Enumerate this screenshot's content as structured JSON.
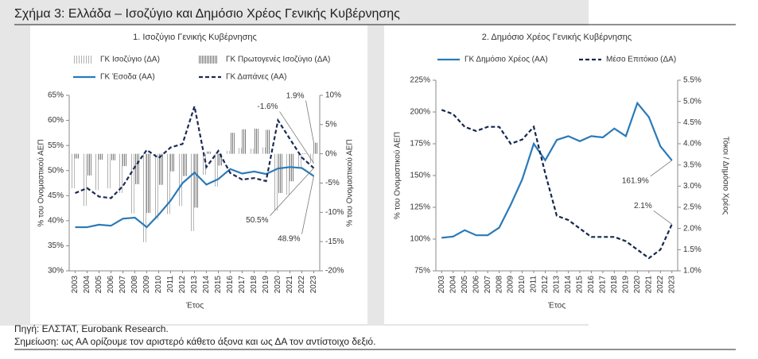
{
  "figure_title": "Σχήμα 3: Ελλάδα – Ισοζύγιο και Δημόσιο Χρέος Γενικής Κυβέρνησης",
  "source": "Πηγή: ΕΛΣΤΑΤ, Eurobank Research.",
  "note": "Σημείωση: ως ΑΑ ορίζουμε τον αριστερό κάθετο άξονα και ως ΔΑ τον αντίστοιχο δεξιό.",
  "chart_data": [
    {
      "type": "combo",
      "title": "1. Ισοζύγιο Γενικής Κυβέρνησης",
      "x_label": "Έτος",
      "y_label": "% του Ονομαστικού ΑΕΠ",
      "y2_label": "% του Ονομαστικού ΑΕΠ",
      "legend": "top",
      "categories": [
        "2003",
        "2004",
        "2005",
        "2006",
        "2007",
        "2008",
        "2009",
        "2010",
        "2011",
        "2012",
        "2013",
        "2014",
        "2015",
        "2016",
        "2017",
        "2018",
        "2019",
        "2020",
        "2021",
        "2022",
        "2023"
      ],
      "ylim": [
        30,
        65
      ],
      "yticks": [
        {
          "value": 30,
          "label": "30%"
        },
        {
          "value": 35,
          "label": "35%"
        },
        {
          "value": 40,
          "label": "40%"
        },
        {
          "value": 45,
          "label": "45%"
        },
        {
          "value": 50,
          "label": "50%"
        },
        {
          "value": 55,
          "label": "55%"
        },
        {
          "value": 60,
          "label": "60%"
        },
        {
          "value": 65,
          "label": "65%"
        }
      ],
      "y2lim": [
        -20,
        10
      ],
      "y2ticks": [
        {
          "value": -20,
          "label": "-20%"
        },
        {
          "value": -15,
          "label": "-15%"
        },
        {
          "value": -10,
          "label": "-10%"
        },
        {
          "value": -5,
          "label": "-5%"
        },
        {
          "value": 0,
          "label": "0%"
        },
        {
          "value": 5,
          "label": "5%"
        },
        {
          "value": 10,
          "label": "10%"
        }
      ],
      "series": [
        {
          "name": "ΓΚ Ισοζύγιο (ΔΑ)",
          "type": "bar",
          "pattern": "hatch",
          "color": "#b0b0b0",
          "axis": "y2",
          "values": [
            -5.9,
            -8.9,
            -6.2,
            -5.9,
            -6.7,
            -10.2,
            -15.1,
            -11.2,
            -10.3,
            -8.9,
            -13.2,
            -3.6,
            -5.6,
            0.5,
            1.0,
            0.9,
            1.1,
            -9.7,
            -7.0,
            -2.4,
            -1.6
          ],
          "value_labels": [
            null,
            null,
            null,
            null,
            null,
            null,
            null,
            null,
            null,
            null,
            null,
            null,
            null,
            null,
            null,
            null,
            null,
            null,
            null,
            null,
            "-1.6%"
          ]
        },
        {
          "name": "ΓΚ Πρωτογενές Ισοζύγιο (ΔΑ)",
          "type": "bar",
          "pattern": "hatch",
          "color": "#7a7a7a",
          "axis": "y2",
          "values": [
            -0.8,
            -3.7,
            -1.0,
            -1.1,
            -2.1,
            -5.2,
            -10.1,
            -5.3,
            -3.0,
            -3.8,
            -9.2,
            0.4,
            -2.0,
            3.6,
            4.2,
            4.3,
            4.1,
            -6.7,
            -4.7,
            0.1,
            1.9
          ],
          "value_labels": [
            null,
            null,
            null,
            null,
            null,
            null,
            null,
            null,
            null,
            null,
            null,
            null,
            null,
            null,
            null,
            null,
            null,
            null,
            null,
            null,
            "1.9%"
          ]
        },
        {
          "name": "ΓΚ Έσοδα (ΑΑ)",
          "type": "line",
          "color": "#2a7ab8",
          "dashed": false,
          "values": [
            38.7,
            38.7,
            39.2,
            39.0,
            40.4,
            40.6,
            38.7,
            41.2,
            44.0,
            47.5,
            49.6,
            47.2,
            48.3,
            50.3,
            49.4,
            49.8,
            49.3,
            50.4,
            50.7,
            50.5,
            48.9
          ],
          "value_labels": [
            null,
            null,
            null,
            null,
            null,
            null,
            null,
            null,
            null,
            null,
            null,
            null,
            null,
            null,
            null,
            null,
            null,
            null,
            null,
            null,
            "48.9%"
          ]
        },
        {
          "name": "ΓΚ Δαπάνες (ΑΑ)",
          "type": "line",
          "color": "#1b2a55",
          "dashed": true,
          "values": [
            45.5,
            46.5,
            44.8,
            44.5,
            46.9,
            50.7,
            54.1,
            52.5,
            54.6,
            55.3,
            62.8,
            50.7,
            53.9,
            49.5,
            48.2,
            48.5,
            47.9,
            60.0,
            56.3,
            52.6,
            50.5
          ],
          "value_labels": [
            null,
            null,
            null,
            null,
            null,
            null,
            null,
            null,
            null,
            null,
            null,
            null,
            null,
            null,
            null,
            null,
            null,
            null,
            null,
            null,
            "50.5%"
          ]
        }
      ]
    },
    {
      "type": "line",
      "title": "2. Δημόσιο Χρέος Γενικής Κυβέρνησης",
      "x_label": "Έτος",
      "y_label": "% του Ονομαστικού ΑΕΠ",
      "y2_label": "Τόκοι / Δημόσιο Χρέος",
      "legend": "top",
      "categories": [
        "2003",
        "2004",
        "2005",
        "2006",
        "2007",
        "2008",
        "2009",
        "2010",
        "2011",
        "2012",
        "2013",
        "2014",
        "2015",
        "2016",
        "2017",
        "2018",
        "2019",
        "2020",
        "2021",
        "2022",
        "2023"
      ],
      "ylim": [
        75,
        225
      ],
      "yticks": [
        {
          "value": 75,
          "label": "75%"
        },
        {
          "value": 100,
          "label": "100%"
        },
        {
          "value": 125,
          "label": "125%"
        },
        {
          "value": 150,
          "label": "150%"
        },
        {
          "value": 175,
          "label": "175%"
        },
        {
          "value": 200,
          "label": "200%"
        },
        {
          "value": 225,
          "label": "225%"
        }
      ],
      "y2lim": [
        1.0,
        5.5
      ],
      "y2ticks": [
        {
          "value": 1.0,
          "label": "1.0%"
        },
        {
          "value": 1.5,
          "label": "1.5%"
        },
        {
          "value": 2.0,
          "label": "2.0%"
        },
        {
          "value": 2.5,
          "label": "2.5%"
        },
        {
          "value": 3.0,
          "label": "3.0%"
        },
        {
          "value": 3.5,
          "label": "3.5%"
        },
        {
          "value": 4.0,
          "label": "4.0%"
        },
        {
          "value": 4.5,
          "label": "4.5%"
        },
        {
          "value": 5.0,
          "label": "5.0%"
        },
        {
          "value": 5.5,
          "label": "5.5%"
        }
      ],
      "series": [
        {
          "name": "ΓΚ Δημόσιο Χρέος (ΑΑ)",
          "type": "line",
          "color": "#2a7ab8",
          "dashed": false,
          "values": [
            101,
            102,
            107,
            103,
            103,
            109,
            127,
            147,
            175,
            162,
            178,
            181,
            177,
            181,
            180,
            187,
            181,
            207,
            196,
            173,
            161.9
          ],
          "value_labels": [
            null,
            null,
            null,
            null,
            null,
            null,
            null,
            null,
            null,
            null,
            null,
            null,
            null,
            null,
            null,
            null,
            null,
            null,
            null,
            null,
            "161.9%"
          ]
        },
        {
          "name": "Μέσο Επιτόκιο (ΔΑ)",
          "type": "line",
          "color": "#14284b",
          "dashed": true,
          "axis": "y2",
          "values": [
            4.8,
            4.7,
            4.4,
            4.3,
            4.4,
            4.4,
            4.0,
            4.1,
            4.4,
            3.3,
            2.3,
            2.2,
            2.0,
            1.8,
            1.8,
            1.8,
            1.7,
            1.5,
            1.3,
            1.5,
            2.1
          ],
          "value_labels": [
            null,
            null,
            null,
            null,
            null,
            null,
            null,
            null,
            null,
            null,
            null,
            null,
            null,
            null,
            null,
            null,
            null,
            null,
            null,
            null,
            "2.1%"
          ]
        }
      ]
    }
  ]
}
